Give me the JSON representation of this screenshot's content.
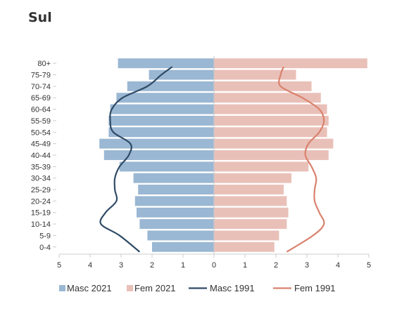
{
  "chart_data": {
    "type": "bar",
    "orientation": "horizontal-population-pyramid",
    "title": "Sul",
    "categories": [
      "80+",
      "75-79",
      "70-74",
      "65-69",
      "60-64",
      "55-59",
      "50-54",
      "45-49",
      "40-44",
      "35-39",
      "30-34",
      "25-29",
      "20-24",
      "15-19",
      "10-14",
      "5-9",
      "0-4"
    ],
    "x_ticks": [
      "5",
      "4",
      "3",
      "2",
      "1",
      "0",
      "1",
      "2",
      "3",
      "4",
      "5"
    ],
    "xlim": [
      -5,
      5
    ],
    "series": [
      {
        "name": "Masc 2021",
        "kind": "bar",
        "side": "left",
        "color": "#9ab7d3",
        "values": [
          3.1,
          2.1,
          2.8,
          3.15,
          3.35,
          3.4,
          3.4,
          3.7,
          3.55,
          3.05,
          2.6,
          2.45,
          2.55,
          2.5,
          2.4,
          2.15,
          2.0
        ]
      },
      {
        "name": "Fem 2021",
        "kind": "bar",
        "side": "right",
        "color": "#e9c0b8",
        "values": [
          4.95,
          2.65,
          3.15,
          3.45,
          3.65,
          3.7,
          3.65,
          3.85,
          3.7,
          3.05,
          2.5,
          2.25,
          2.35,
          2.4,
          2.35,
          2.1,
          1.95
        ]
      },
      {
        "name": "Masc 1991",
        "kind": "line",
        "side": "left",
        "color": "#2f4b66",
        "values": [
          1.35,
          1.7,
          2.15,
          2.95,
          3.3,
          3.35,
          3.25,
          2.7,
          2.75,
          3.05,
          3.2,
          3.2,
          3.15,
          3.5,
          3.65,
          3.05,
          2.4
        ]
      },
      {
        "name": "Fem 1991",
        "kind": "line",
        "side": "right",
        "color": "#d9826e",
        "values": [
          2.25,
          2.15,
          2.15,
          2.85,
          3.4,
          3.55,
          3.4,
          3.05,
          2.95,
          3.15,
          3.3,
          3.25,
          3.25,
          3.4,
          3.55,
          3.2,
          2.35
        ]
      }
    ],
    "grid": false,
    "legend_position": "bottom"
  }
}
